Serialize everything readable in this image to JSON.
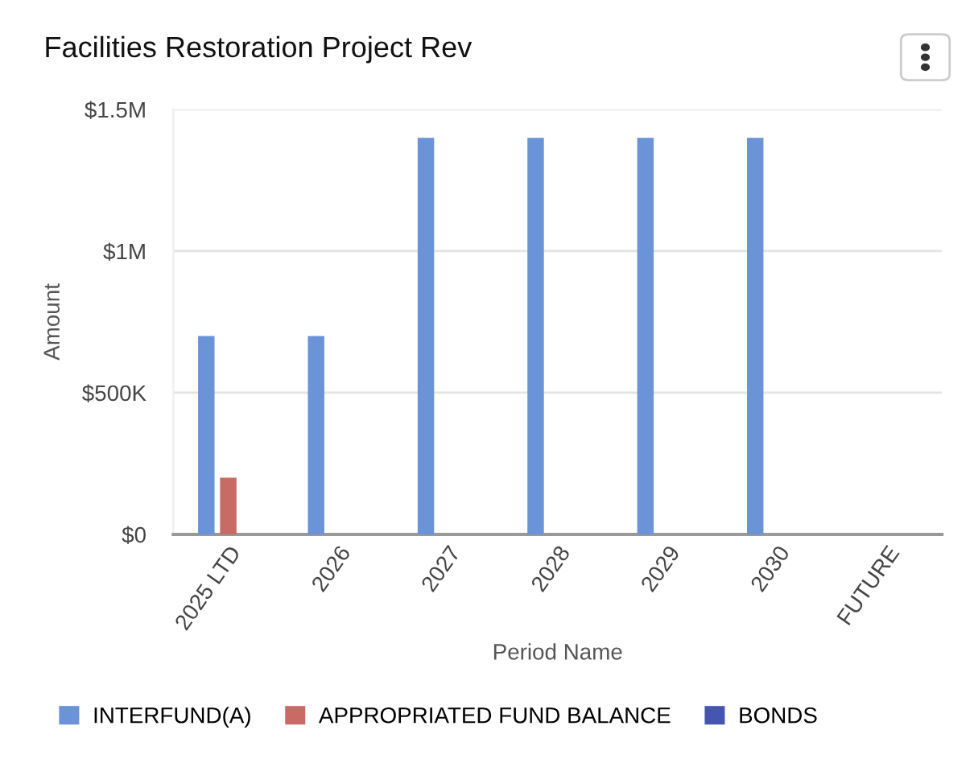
{
  "chart_data": {
    "type": "bar",
    "title": "Facilities Restoration Project Rev",
    "xlabel": "Period Name",
    "ylabel": "Amount",
    "categories": [
      "2025 LTD",
      "2026",
      "2027",
      "2028",
      "2029",
      "2030",
      "FUTURE"
    ],
    "series": [
      {
        "name": "INTERFUND(A)",
        "color": "#6a93d8",
        "values": [
          700000,
          700000,
          1400000,
          1400000,
          1400000,
          1400000,
          null
        ]
      },
      {
        "name": "APPROPRIATED FUND BALANCE",
        "color": "#c96b65",
        "values": [
          200000,
          null,
          null,
          null,
          null,
          null,
          null
        ]
      },
      {
        "name": "BONDS",
        "color": "#4556b0",
        "values": [
          null,
          null,
          null,
          null,
          null,
          null,
          null
        ]
      }
    ],
    "ylim": [
      0,
      1500000
    ],
    "yticks": [
      {
        "value": 0,
        "label": "$0"
      },
      {
        "value": 500000,
        "label": "$500K"
      },
      {
        "value": 1000000,
        "label": "$1M"
      },
      {
        "value": 1500000,
        "label": "$1.5M"
      }
    ],
    "grid": "y",
    "legend": "bottom"
  }
}
